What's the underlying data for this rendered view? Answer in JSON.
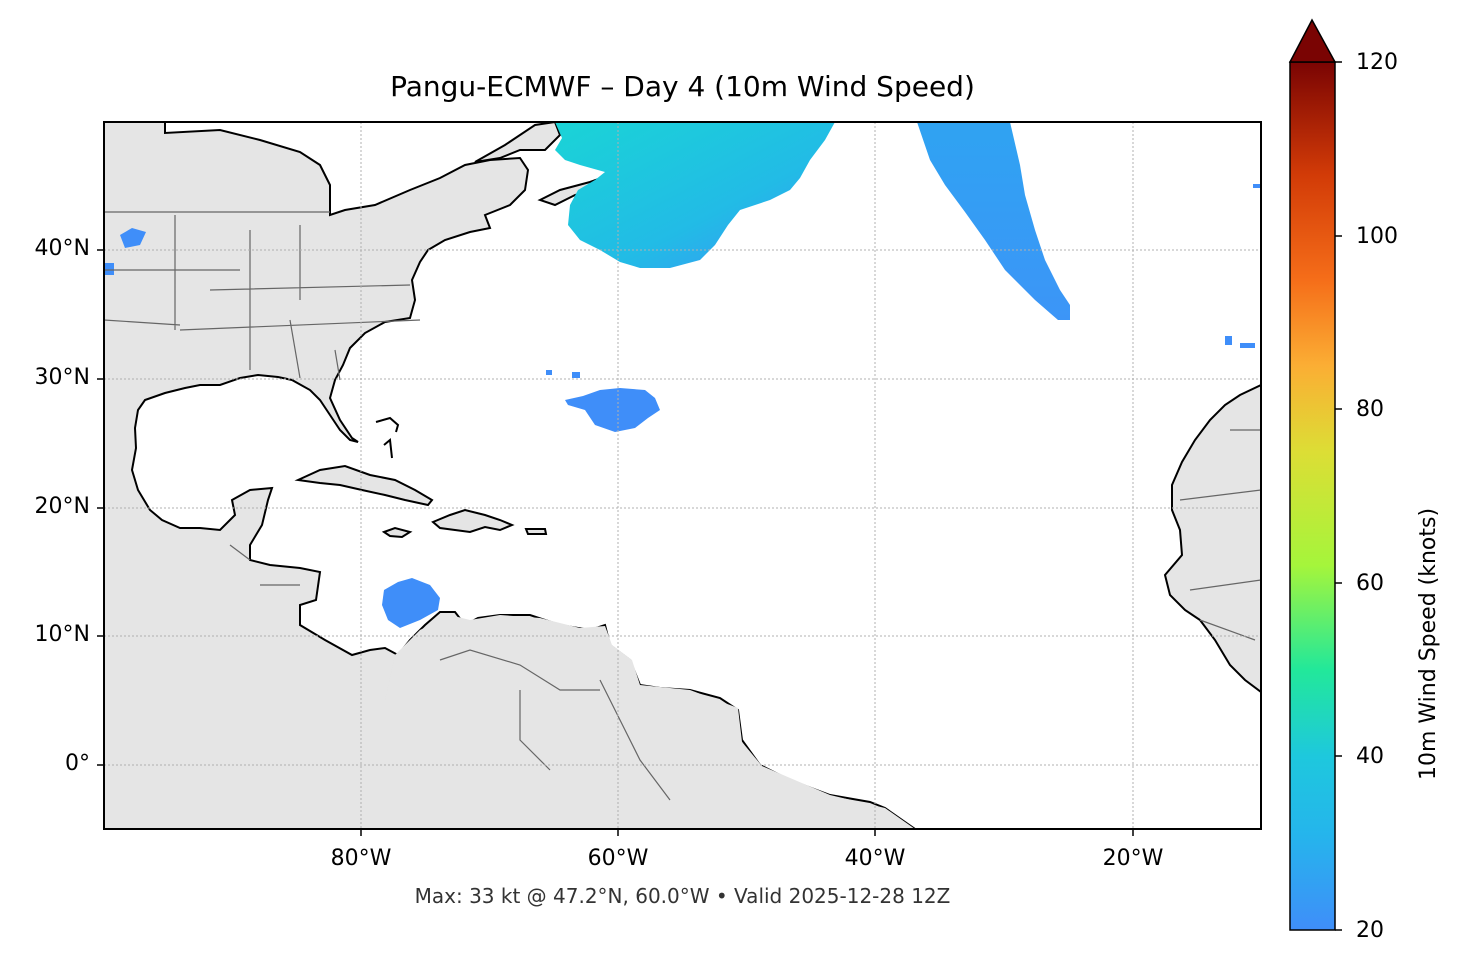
{
  "title": "Pangu-ECMWF – Day 4 (10m Wind Speed)",
  "footer": "Max: 33 kt @ 47.2°N, 60.0°W • Valid 2025-12-28 12Z",
  "map": {
    "extent_lon": [
      -100,
      -10
    ],
    "extent_lat": [
      -5,
      50
    ],
    "lat_ticks": [
      {
        "value": 40,
        "label": "40°N"
      },
      {
        "value": 30,
        "label": "30°N"
      },
      {
        "value": 20,
        "label": "20°N"
      },
      {
        "value": 10,
        "label": "10°N"
      },
      {
        "value": 0,
        "label": "0°"
      }
    ],
    "lon_ticks": [
      {
        "value": -80,
        "label": "80°W"
      },
      {
        "value": -60,
        "label": "60°W"
      },
      {
        "value": -40,
        "label": "40°W"
      },
      {
        "value": -20,
        "label": "20°W"
      }
    ],
    "grid": true,
    "land_color": "#e5e5e5",
    "coast_color": "#000000",
    "border_color": "#666666"
  },
  "colorbar": {
    "label": "10m Wind Speed (knots)",
    "min": 20,
    "max": 120,
    "extend": "max",
    "tick_labels": [
      "20",
      "40",
      "60",
      "80",
      "100",
      "120"
    ],
    "colors": [
      "#3f8ef9",
      "#1ec8dd",
      "#22e89a",
      "#a5f53b",
      "#dcde35",
      "#fbae34",
      "#f56d19",
      "#d23b07",
      "#a01502",
      "#7a0403"
    ]
  },
  "wind_regions": [
    {
      "name": "newfoundland-jet",
      "peak_kt": 33,
      "color": "#1ad4d6"
    },
    {
      "name": "central-atlantic-band",
      "peak_kt": 26,
      "color": "#2aaef0"
    },
    {
      "name": "subtropical-blob",
      "peak_kt": 21,
      "color": "#3f8ef9"
    },
    {
      "name": "caribbean-blob",
      "peak_kt": 22,
      "color": "#3f8ef9"
    }
  ]
}
